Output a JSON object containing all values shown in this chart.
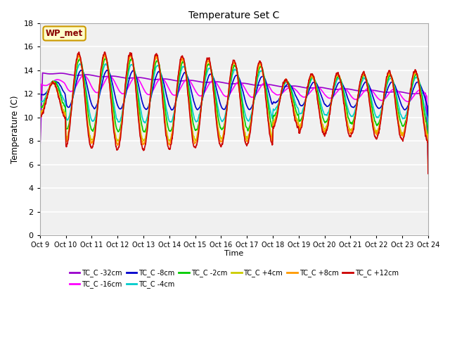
{
  "title": "Temperature Set C",
  "xlabel": "Time",
  "ylabel": "Temperature (C)",
  "ylim": [
    0,
    18
  ],
  "yticks": [
    0,
    2,
    4,
    6,
    8,
    10,
    12,
    14,
    16,
    18
  ],
  "n_days": 15,
  "xtick_labels": [
    "Oct 9",
    "Oct 10",
    "Oct 11",
    "Oct 12",
    "Oct 13",
    "Oct 14",
    "Oct 15",
    "Oct 16",
    "Oct 17",
    "Oct 18",
    "Oct 19",
    "Oct 20",
    "Oct 21",
    "Oct 22",
    "Oct 23",
    "Oct 24"
  ],
  "wp_met_box_color": "#ffffcc",
  "wp_met_border_color": "#cc9900",
  "fig_bg": "#ffffff",
  "plot_bg": "#f0f0f0",
  "grid_color": "#ffffff",
  "series": {
    "TC_C -32cm": {
      "color": "#9900cc",
      "lw": 1.2
    },
    "TC_C -16cm": {
      "color": "#ff00ff",
      "lw": 1.2
    },
    "TC_C -8cm": {
      "color": "#0000cc",
      "lw": 1.2
    },
    "TC_C -4cm": {
      "color": "#00cccc",
      "lw": 1.2
    },
    "TC_C -2cm": {
      "color": "#00cc00",
      "lw": 1.2
    },
    "TC_C +4cm": {
      "color": "#cccc00",
      "lw": 1.2
    },
    "TC_C +8cm": {
      "color": "#ff9900",
      "lw": 1.2
    },
    "TC_C +12cm": {
      "color": "#cc0000",
      "lw": 1.2
    }
  }
}
